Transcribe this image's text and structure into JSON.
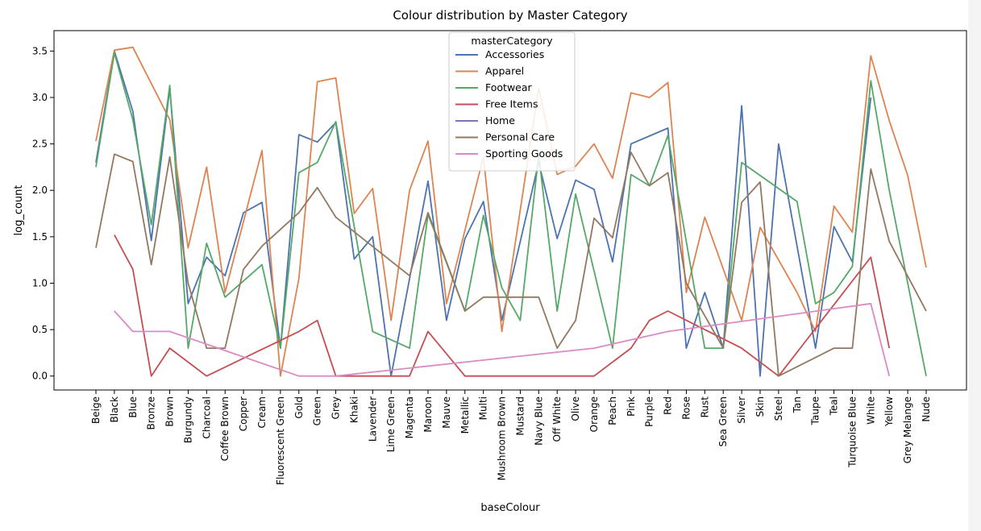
{
  "chart_data": {
    "type": "line",
    "title": "Colour distribution by Master Category",
    "xlabel": "baseColour",
    "ylabel": "log_count",
    "ylim": [
      -0.15,
      3.72
    ],
    "yticks": [
      "0.0",
      "0.5",
      "1.0",
      "1.5",
      "2.0",
      "2.5",
      "3.0",
      "3.5"
    ],
    "yticks_values": [
      0,
      0.5,
      1.0,
      1.5,
      2.0,
      2.5,
      3.0,
      3.5
    ],
    "grid": false,
    "legend": {
      "title": "masterCategory",
      "placement": "top-center"
    },
    "categories": [
      "Beige",
      "Black",
      "Blue",
      "Bronze",
      "Brown",
      "Burgundy",
      "Charcoal",
      "Coffee Brown",
      "Copper",
      "Cream",
      "Fluorescent Green",
      "Gold",
      "Green",
      "Grey",
      "Khaki",
      "Lavender",
      "Lime Green",
      "Magenta",
      "Maroon",
      "Mauve",
      "Metallic",
      "Multi",
      "Mushroom Brown",
      "Mustard",
      "Navy Blue",
      "Off White",
      "Olive",
      "Orange",
      "Peach",
      "Pink",
      "Purple",
      "Red",
      "Rose",
      "Rust",
      "Sea Green",
      "Silver",
      "Skin",
      "Steel",
      "Tan",
      "Taupe",
      "Teal",
      "Turquoise Blue",
      "White",
      "Yellow",
      "Grey Melange",
      "Nude"
    ],
    "series": [
      {
        "name": "Accessories",
        "color": "#4c72b0",
        "values": [
          2.3,
          3.5,
          2.85,
          1.46,
          3.1,
          0.78,
          1.28,
          1.08,
          1.76,
          1.87,
          0.3,
          2.6,
          2.52,
          2.73,
          1.26,
          1.5,
          0.0,
          null,
          2.1,
          0.6,
          1.48,
          1.88,
          0.6,
          null,
          2.3,
          1.48,
          2.11,
          2.01,
          1.23,
          2.5,
          null,
          2.67,
          0.3,
          0.9,
          0.3,
          2.91,
          0.0,
          2.5,
          null,
          0.3,
          1.61,
          1.23,
          3.0,
          null,
          null,
          null
        ]
      },
      {
        "name": "Apparel",
        "color": "#dd8452",
        "values": [
          2.53,
          3.51,
          3.54,
          null,
          2.76,
          1.38,
          2.25,
          0.9,
          null,
          2.43,
          0.0,
          1.05,
          3.17,
          3.21,
          1.75,
          2.02,
          0.6,
          2.0,
          2.53,
          0.78,
          null,
          2.36,
          0.48,
          null,
          3.1,
          2.17,
          2.26,
          2.5,
          2.13,
          3.05,
          3.0,
          3.16,
          0.9,
          1.71,
          null,
          0.6,
          1.6,
          null,
          0.9,
          0.48,
          1.83,
          1.55,
          3.45,
          2.75,
          2.16,
          1.17
        ]
      },
      {
        "name": "Footwear",
        "color": "#55a868",
        "values": [
          2.25,
          3.48,
          2.76,
          1.63,
          3.13,
          0.3,
          1.43,
          0.85,
          null,
          1.2,
          0.3,
          2.19,
          2.3,
          2.74,
          null,
          0.48,
          null,
          0.3,
          1.74,
          null,
          0.7,
          1.73,
          0.95,
          0.6,
          2.38,
          0.7,
          1.96,
          null,
          0.3,
          2.17,
          2.05,
          2.59,
          null,
          0.3,
          0.3,
          2.3,
          null,
          null,
          1.88,
          0.78,
          0.9,
          1.18,
          3.18,
          2.0,
          null,
          0.0
        ]
      },
      {
        "name": "Free Items",
        "color": "#c44e52",
        "values": [
          null,
          1.52,
          1.15,
          0.0,
          0.3,
          null,
          0.0,
          null,
          null,
          null,
          null,
          0.48,
          0.6,
          0.0,
          null,
          null,
          null,
          0.0,
          0.48,
          null,
          0.0,
          null,
          null,
          null,
          null,
          null,
          null,
          0.0,
          null,
          0.3,
          0.6,
          0.7,
          null,
          null,
          null,
          0.3,
          null,
          0.0,
          null,
          null,
          null,
          null,
          1.28,
          0.3,
          null,
          null
        ]
      },
      {
        "name": "Home",
        "color": "#8172b3",
        "values": [
          null,
          null,
          null,
          null,
          null,
          null,
          null,
          null,
          null,
          null,
          null,
          null,
          null,
          0.0,
          null,
          null,
          null,
          null,
          null,
          null,
          null,
          null,
          null,
          null,
          null,
          null,
          null,
          null,
          null,
          null,
          null,
          null,
          null,
          null,
          null,
          null,
          null,
          null,
          null,
          null,
          null,
          null,
          null,
          null,
          null,
          null
        ]
      },
      {
        "name": "Personal Care",
        "color": "#937860",
        "values": [
          1.38,
          2.39,
          2.31,
          1.2,
          2.36,
          1.0,
          0.3,
          0.3,
          1.15,
          1.4,
          null,
          1.76,
          2.03,
          1.71,
          null,
          null,
          null,
          1.08,
          1.76,
          null,
          0.7,
          0.85,
          0.85,
          0.85,
          0.85,
          0.3,
          0.6,
          1.7,
          1.49,
          2.41,
          2.05,
          2.19,
          1.0,
          null,
          0.3,
          1.87,
          2.09,
          0.0,
          null,
          null,
          0.3,
          0.3,
          2.23,
          1.45,
          null,
          0.7
        ]
      },
      {
        "name": "Sporting Goods",
        "color": "#da8bc3",
        "values": [
          null,
          0.7,
          0.48,
          0.48,
          0.48,
          null,
          null,
          null,
          null,
          null,
          null,
          0.0,
          0.0,
          0.0,
          null,
          null,
          null,
          null,
          null,
          null,
          null,
          null,
          null,
          null,
          null,
          null,
          null,
          0.3,
          null,
          null,
          null,
          0.48,
          null,
          null,
          null,
          null,
          null,
          null,
          null,
          null,
          null,
          null,
          0.78,
          0.0,
          null,
          null
        ]
      }
    ]
  }
}
